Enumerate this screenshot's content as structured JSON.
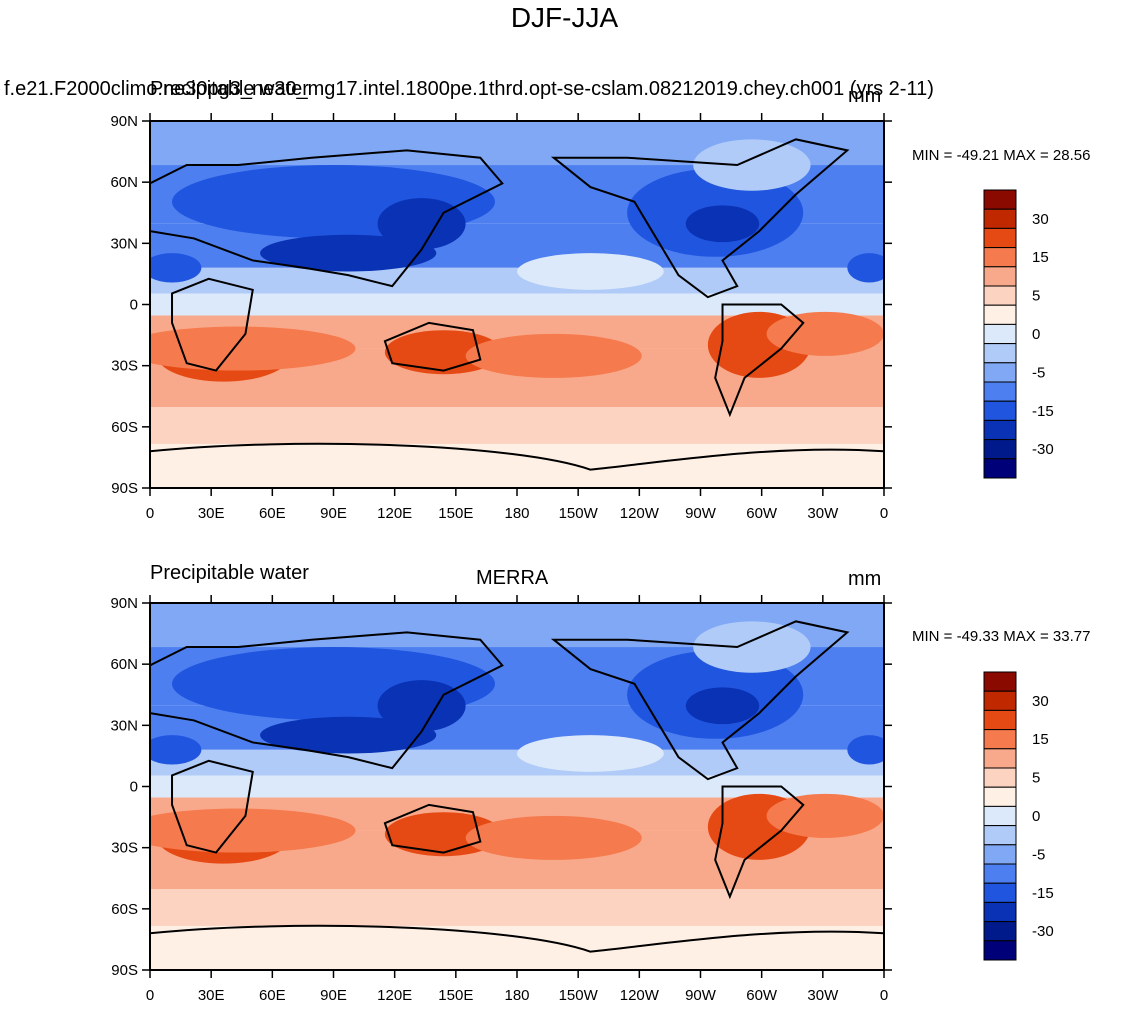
{
  "figure": {
    "title": "DJF-JJA",
    "panels": [
      {
        "left_label": "Precipitable water",
        "center_label": "f.e21.F2000climo.ne30pg3_ne30_mg17.intel.1800pe.1thrd.opt-se-cslam.08212019.chey.ch001 (yrs 2-11)",
        "right_label": "mm",
        "stats": "MIN = -49.21 MAX =  28.56"
      },
      {
        "left_label": "Precipitable water",
        "center_label": "MERRA",
        "right_label": "mm",
        "stats": "MIN = -49.33 MAX =  33.77"
      }
    ],
    "x_tick_labels": [
      "0",
      "30E",
      "60E",
      "90E",
      "120E",
      "150E",
      "180",
      "150W",
      "120W",
      "90W",
      "60W",
      "30W",
      "0"
    ],
    "y_tick_labels": [
      "90N",
      "60N",
      "30N",
      "0",
      "30S",
      "60S",
      "90S"
    ],
    "colorbar": {
      "labels": [
        "30",
        "15",
        "5",
        "0",
        "-5",
        "-15",
        "-30"
      ],
      "colors": [
        "#8b0a00",
        "#c02800",
        "#e64a14",
        "#f57a4e",
        "#f9a98b",
        "#fcd3c1",
        "#fff0e6",
        "#dce9fa",
        "#b0cbf7",
        "#80a8f4",
        "#4d7ff0",
        "#2055e0",
        "#0a32b4",
        "#001a8c",
        "#000078"
      ]
    },
    "field_colors": {
      "land_outline": "#000000",
      "ocean_extratropics": "#4d7ff0",
      "positive_strong": "#e64a14",
      "negative_strong": "#0a32b4"
    }
  }
}
